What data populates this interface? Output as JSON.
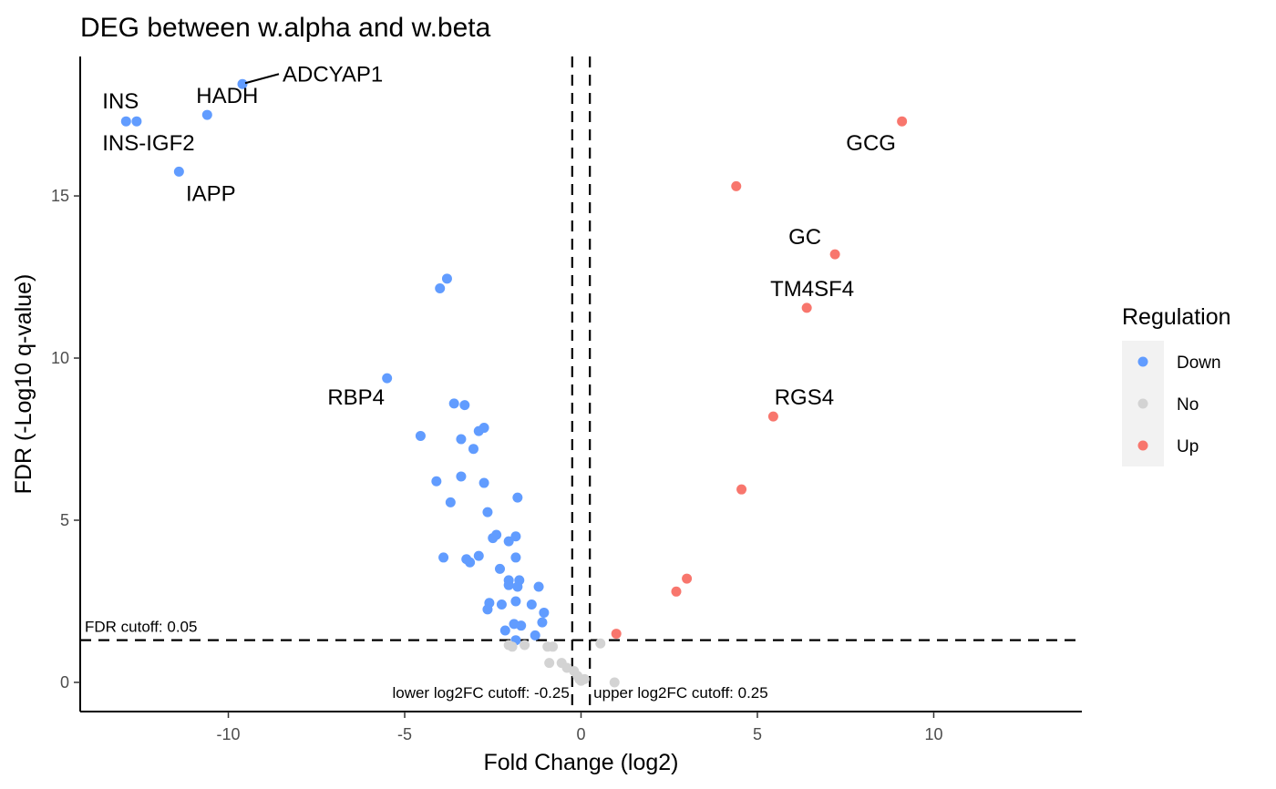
{
  "chart_data": {
    "type": "scatter",
    "title": "DEG between w.alpha and w.beta",
    "xlabel": "Fold Change (log2)",
    "ylabel": "FDR (-Log10 q-value)",
    "xlim": [
      -14.2,
      14.2
    ],
    "ylim": [
      -0.9,
      19.3
    ],
    "x_ticks": [
      -10,
      -5,
      0,
      5,
      10
    ],
    "x_tick_labels": [
      "-10",
      "-5",
      "0",
      "5",
      "10"
    ],
    "y_ticks": [
      0,
      5,
      10,
      15
    ],
    "y_tick_labels": [
      "0",
      "5",
      "10",
      "15"
    ],
    "grid": false,
    "legend": {
      "title": "Regulation",
      "placement": "right",
      "entries": [
        {
          "label": "Down",
          "color": "#619CFF"
        },
        {
          "label": "No",
          "color": "#D3D3D3"
        },
        {
          "label": "Up",
          "color": "#F8766D"
        }
      ]
    },
    "cutoffs": {
      "fdr": {
        "value": 1.301,
        "label": "FDR cutoff: 0.05"
      },
      "lower_log2fc": {
        "value": -0.25,
        "label": "lower log2FC cutoff: -0.25"
      },
      "upper_log2fc": {
        "value": 0.25,
        "label": "upper log2FC cutoff: 0.25"
      }
    },
    "series": [
      {
        "name": "Down",
        "color": "#619CFF",
        "points": [
          {
            "x": -9.6,
            "y": 18.45,
            "label": "ADCYAP1"
          },
          {
            "x": -10.6,
            "y": 17.5,
            "label": "HADH"
          },
          {
            "x": -12.9,
            "y": 17.3,
            "label": "INS"
          },
          {
            "x": -12.6,
            "y": 17.3,
            "label": "INS-IGF2"
          },
          {
            "x": -11.4,
            "y": 15.75,
            "label": "IAPP"
          },
          {
            "x": -3.8,
            "y": 12.45
          },
          {
            "x": -4.0,
            "y": 12.15
          },
          {
            "x": -5.5,
            "y": 9.38,
            "label": "RBP4"
          },
          {
            "x": -3.6,
            "y": 8.6
          },
          {
            "x": -3.3,
            "y": 8.55
          },
          {
            "x": -4.55,
            "y": 7.6
          },
          {
            "x": -2.75,
            "y": 7.85
          },
          {
            "x": -2.9,
            "y": 7.75
          },
          {
            "x": -3.4,
            "y": 7.5
          },
          {
            "x": -3.05,
            "y": 7.2
          },
          {
            "x": -4.1,
            "y": 6.2
          },
          {
            "x": -3.4,
            "y": 6.35
          },
          {
            "x": -2.75,
            "y": 6.15
          },
          {
            "x": -3.7,
            "y": 5.55
          },
          {
            "x": -1.8,
            "y": 5.7
          },
          {
            "x": -2.65,
            "y": 5.25
          },
          {
            "x": -2.4,
            "y": 4.55
          },
          {
            "x": -2.5,
            "y": 4.45
          },
          {
            "x": -1.85,
            "y": 4.5
          },
          {
            "x": -2.05,
            "y": 4.35
          },
          {
            "x": -3.9,
            "y": 3.85
          },
          {
            "x": -3.25,
            "y": 3.8
          },
          {
            "x": -2.9,
            "y": 3.9
          },
          {
            "x": -3.15,
            "y": 3.7
          },
          {
            "x": -1.85,
            "y": 3.85
          },
          {
            "x": -2.3,
            "y": 3.5
          },
          {
            "x": -1.75,
            "y": 3.15
          },
          {
            "x": -2.05,
            "y": 3.15
          },
          {
            "x": -2.05,
            "y": 3.0
          },
          {
            "x": -1.8,
            "y": 2.95
          },
          {
            "x": -1.2,
            "y": 2.95
          },
          {
            "x": -2.6,
            "y": 2.45
          },
          {
            "x": -2.65,
            "y": 2.25
          },
          {
            "x": -2.25,
            "y": 2.4
          },
          {
            "x": -1.85,
            "y": 2.5
          },
          {
            "x": -1.4,
            "y": 2.4
          },
          {
            "x": -1.05,
            "y": 2.15
          },
          {
            "x": -1.1,
            "y": 1.85
          },
          {
            "x": -1.9,
            "y": 1.8
          },
          {
            "x": -1.7,
            "y": 1.75
          },
          {
            "x": -2.15,
            "y": 1.6
          },
          {
            "x": -1.3,
            "y": 1.45
          },
          {
            "x": -1.85,
            "y": 1.3
          }
        ]
      },
      {
        "name": "No",
        "color": "#D3D3D3",
        "points": [
          {
            "x": -2.05,
            "y": 1.15
          },
          {
            "x": -1.95,
            "y": 1.1
          },
          {
            "x": -1.6,
            "y": 1.15
          },
          {
            "x": -0.95,
            "y": 1.1
          },
          {
            "x": -0.8,
            "y": 1.1
          },
          {
            "x": -0.55,
            "y": 0.6
          },
          {
            "x": -0.9,
            "y": 0.6
          },
          {
            "x": -0.4,
            "y": 0.45
          },
          {
            "x": -0.2,
            "y": 0.35
          },
          {
            "x": -0.1,
            "y": 0.2
          },
          {
            "x": -0.05,
            "y": 0.1
          },
          {
            "x": 0.0,
            "y": 0.05
          },
          {
            "x": 0.1,
            "y": 0.1
          },
          {
            "x": 0.55,
            "y": 1.2
          },
          {
            "x": 0.95,
            "y": 0.0
          }
        ]
      },
      {
        "name": "Up",
        "color": "#F8766D",
        "points": [
          {
            "x": 9.1,
            "y": 17.3,
            "label": "GCG"
          },
          {
            "x": 4.4,
            "y": 15.3
          },
          {
            "x": 7.2,
            "y": 13.2,
            "label": "GC"
          },
          {
            "x": 6.4,
            "y": 11.55,
            "label": "TM4SF4"
          },
          {
            "x": 5.45,
            "y": 8.2,
            "label": "RGS4"
          },
          {
            "x": 4.55,
            "y": 5.95
          },
          {
            "x": 3.0,
            "y": 3.2
          },
          {
            "x": 2.7,
            "y": 2.8
          },
          {
            "x": 1.0,
            "y": 1.5
          }
        ]
      }
    ]
  }
}
